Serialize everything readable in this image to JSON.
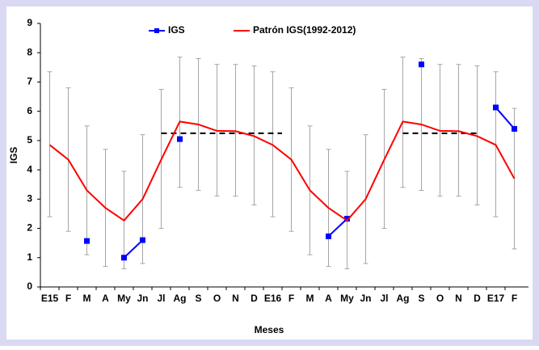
{
  "chart_data": {
    "type": "line",
    "x_label": "Meses",
    "y_label": "IGS",
    "categories": [
      "E15",
      "F",
      "M",
      "A",
      "My",
      "Jn",
      "Jl",
      "Ag",
      "S",
      "O",
      "N",
      "D",
      "E16",
      "F",
      "M",
      "A",
      "My",
      "Jn",
      "Jl",
      "Ag",
      "S",
      "O",
      "N",
      "D",
      "E17",
      "F"
    ],
    "ylim": [
      0,
      9
    ],
    "yticks": [
      0,
      1,
      2,
      3,
      4,
      5,
      6,
      7,
      8,
      9
    ],
    "series": [
      {
        "name": "IGS",
        "color": "#0000ff",
        "values": [
          null,
          null,
          1.57,
          null,
          1.0,
          1.6,
          null,
          5.05,
          null,
          null,
          null,
          null,
          null,
          null,
          null,
          1.73,
          2.33,
          null,
          null,
          null,
          7.6,
          null,
          null,
          null,
          6.13,
          5.4
        ]
      },
      {
        "name": "Patrón IGS(1992-2012)",
        "color": "#ff0000",
        "values": [
          4.85,
          4.35,
          3.3,
          2.7,
          2.27,
          3.0,
          4.35,
          5.65,
          5.55,
          5.33,
          5.32,
          5.15,
          4.85,
          4.35,
          3.3,
          2.7,
          2.27,
          3.0,
          4.35,
          5.65,
          5.55,
          5.33,
          5.32,
          5.15,
          4.85,
          3.7
        ],
        "range_low": [
          2.4,
          1.9,
          1.1,
          0.7,
          0.62,
          0.8,
          2.0,
          3.4,
          3.3,
          3.1,
          3.1,
          2.8,
          2.4,
          1.9,
          1.1,
          0.7,
          0.62,
          0.8,
          2.0,
          3.4,
          3.3,
          3.1,
          3.1,
          2.8,
          2.4,
          1.3
        ],
        "range_high": [
          7.35,
          6.8,
          5.5,
          4.7,
          3.95,
          5.2,
          6.75,
          7.85,
          7.8,
          7.6,
          7.6,
          7.55,
          7.35,
          6.8,
          5.5,
          4.7,
          3.95,
          5.2,
          6.75,
          7.85,
          7.8,
          7.6,
          7.6,
          7.55,
          7.35,
          6.1
        ]
      }
    ],
    "reference_lines": [
      {
        "value": 5.25,
        "start": 6,
        "end": 12.5
      },
      {
        "value": 5.25,
        "start": 19,
        "end": 23
      }
    ]
  }
}
